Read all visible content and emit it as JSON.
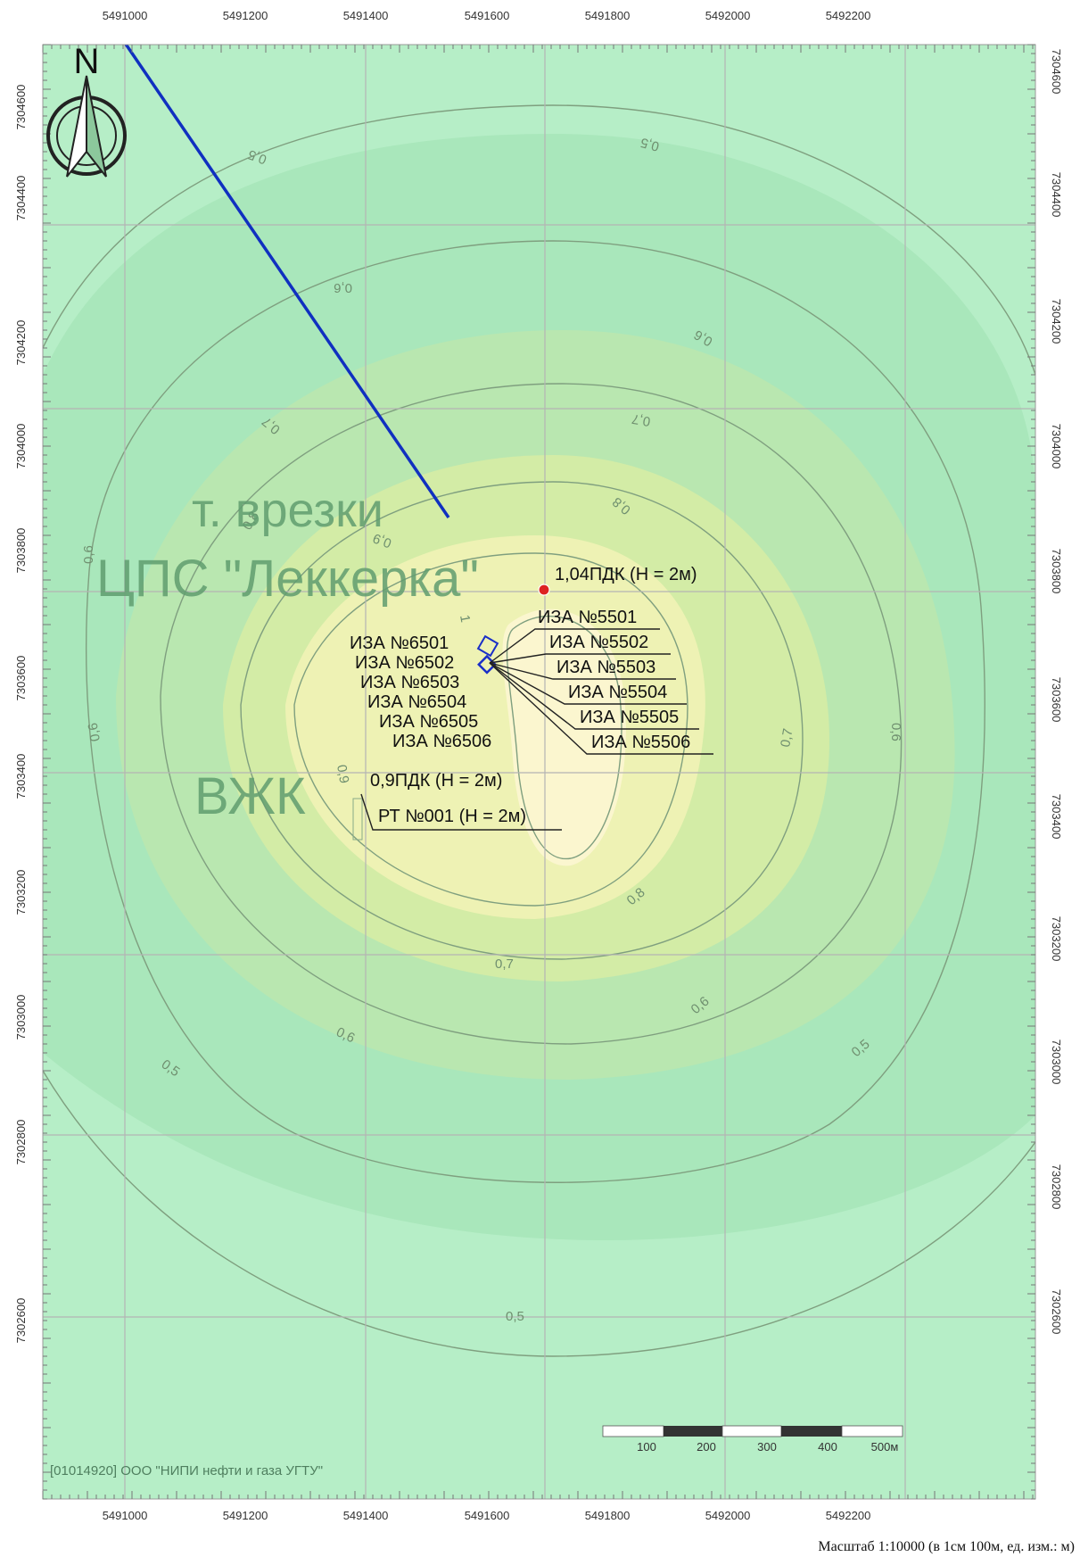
{
  "map": {
    "north_label": "N",
    "x_ticks": [
      "5491000",
      "5491200",
      "5491400",
      "5491600",
      "5491800",
      "5492000",
      "5492200"
    ],
    "y_ticks": [
      "7304600",
      "7304400",
      "7304200",
      "7304000",
      "7303800",
      "7303600",
      "7303400",
      "7303200",
      "7303000",
      "7302800",
      "7302600"
    ],
    "contour_labels": {
      "c05": "0,5",
      "c06": "0,6",
      "c07": "0,7",
      "c08": "0,8",
      "c09": "0,9",
      "c1": "1"
    },
    "place_labels": {
      "vrezki": "т. врезки",
      "cps": "ЦПС \"Леккерка\"",
      "vzhk": "ВЖК"
    },
    "max_point": {
      "label": "1,04ПДК (Н = 2м)",
      "value_pdk": 1.04,
      "height_m": 2
    },
    "rt_point": {
      "value_label": "0,9ПДК (Н = 2м)",
      "name": "РТ №001 (Н = 2м)",
      "value_pdk": 0.9,
      "height_m": 2
    },
    "sources_left": [
      "ИЗА №6501",
      "ИЗА №6502",
      "ИЗА №6503",
      "ИЗА №6504",
      "ИЗА №6505",
      "ИЗА №6506"
    ],
    "sources_right": [
      "ИЗА №5501",
      "ИЗА №5502",
      "ИЗА №5503",
      "ИЗА №5504",
      "ИЗА №5505",
      "ИЗА №5506"
    ],
    "scale_bar_labels": [
      "100",
      "200",
      "300",
      "400",
      "500м"
    ],
    "copyright": "[01014920] ООО \"НИПИ нефти и газа УГТУ\"",
    "scale_note": "Масштаб 1:10000 (в 1см 100м, ед. изм.: м)",
    "colors": {
      "zone_05": "#b6eec7",
      "zone_06": "#a9e7bb",
      "zone_07": "#b9e7b0",
      "zone_08": "#d3eca6",
      "zone_09": "#eef2b4",
      "zone_1": "#fbf6cf",
      "pipeline": "#1030c0",
      "max_marker": "#dd2222"
    }
  }
}
